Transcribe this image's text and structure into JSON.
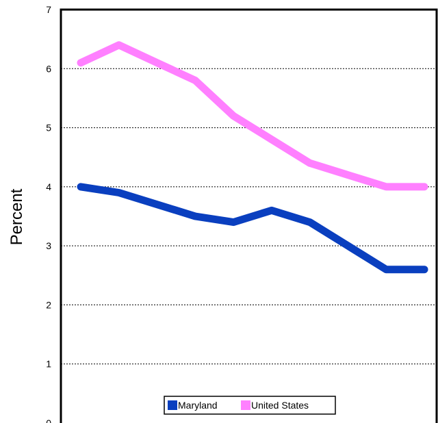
{
  "chart_data": {
    "type": "line",
    "title": "",
    "xlabel": "",
    "ylabel": "Percent",
    "ylim": [
      0,
      7
    ],
    "yticks": [
      "0",
      "1",
      "2",
      "3",
      "4",
      "5",
      "6",
      "7"
    ],
    "grid": "horizontal-dotted",
    "legend_position": "bottom-center",
    "series": [
      {
        "name": "Maryland",
        "color": "#0a3fbf",
        "values": [
          4.0,
          3.9,
          3.7,
          3.5,
          3.4,
          3.6,
          3.4,
          3.0,
          2.6,
          2.6
        ]
      },
      {
        "name": "United States",
        "color": "#ff80ff",
        "values": [
          6.1,
          6.4,
          6.1,
          5.8,
          5.2,
          4.8,
          4.4,
          4.2,
          4.0,
          4.0
        ]
      }
    ]
  }
}
